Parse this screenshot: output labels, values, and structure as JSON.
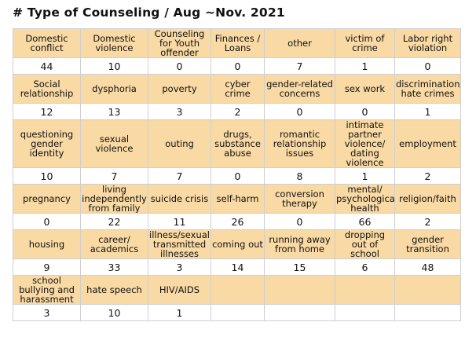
{
  "title": "# Type of Counseling / Aug ~Nov. 2021",
  "rows": [
    [
      {
        "label": "Domestic conflict",
        "value": "44"
      },
      {
        "label": "Domestic violence",
        "value": "10"
      },
      {
        "label": "Counseling for Youth offender",
        "value": "0"
      },
      {
        "label": "Finances / Loans",
        "value": "0"
      },
      {
        "label": "other",
        "value": "7"
      },
      {
        "label": "victim of crime",
        "value": "1"
      },
      {
        "label": "Labor right violation",
        "value": "0"
      }
    ],
    [
      {
        "label": "Social relationship",
        "value": "12"
      },
      {
        "label": "dysphoria",
        "value": "13"
      },
      {
        "label": "poverty",
        "value": "3"
      },
      {
        "label": "cyber crime",
        "value": "2"
      },
      {
        "label": "gender-related concerns",
        "value": "0"
      },
      {
        "label": "sex work",
        "value": "0"
      },
      {
        "label": "discrimination/ hate crimes",
        "value": "1"
      }
    ],
    [
      {
        "label": "questioning gender identity",
        "value": "10"
      },
      {
        "label": "sexual violence",
        "value": "7"
      },
      {
        "label": "outing",
        "value": "7"
      },
      {
        "label": "drugs, substance abuse",
        "value": "0"
      },
      {
        "label": "romantic relationship issues",
        "value": "8"
      },
      {
        "label": "intimate partner violence/ dating violence",
        "value": "1"
      },
      {
        "label": "employment",
        "value": "2"
      }
    ],
    [
      {
        "label": "pregnancy",
        "value": "0"
      },
      {
        "label": "living independently from family",
        "value": "22"
      },
      {
        "label": "suicide crisis",
        "value": "11"
      },
      {
        "label": "self-harm",
        "value": "26"
      },
      {
        "label": "conversion therapy",
        "value": "0"
      },
      {
        "label": "mental/ psychological health",
        "value": "66"
      },
      {
        "label": "religion/faith",
        "value": "2"
      }
    ],
    [
      {
        "label": "housing",
        "value": "9"
      },
      {
        "label": "career/ academics",
        "value": "33"
      },
      {
        "label": "illness/sexually transmitted illnesses",
        "value": "3"
      },
      {
        "label": "coming out",
        "value": "14"
      },
      {
        "label": "running away from home",
        "value": "15"
      },
      {
        "label": "dropping out of school",
        "value": "6"
      },
      {
        "label": "gender transition",
        "value": "48"
      }
    ],
    [
      {
        "label": "school bullying and harassment",
        "value": "3"
      },
      {
        "label": "hate speech",
        "value": "10"
      },
      {
        "label": "HIV/AIDS",
        "value": "1"
      },
      {
        "label": "",
        "value": ""
      },
      {
        "label": "",
        "value": ""
      },
      {
        "label": "",
        "value": ""
      },
      {
        "label": "",
        "value": ""
      }
    ]
  ]
}
